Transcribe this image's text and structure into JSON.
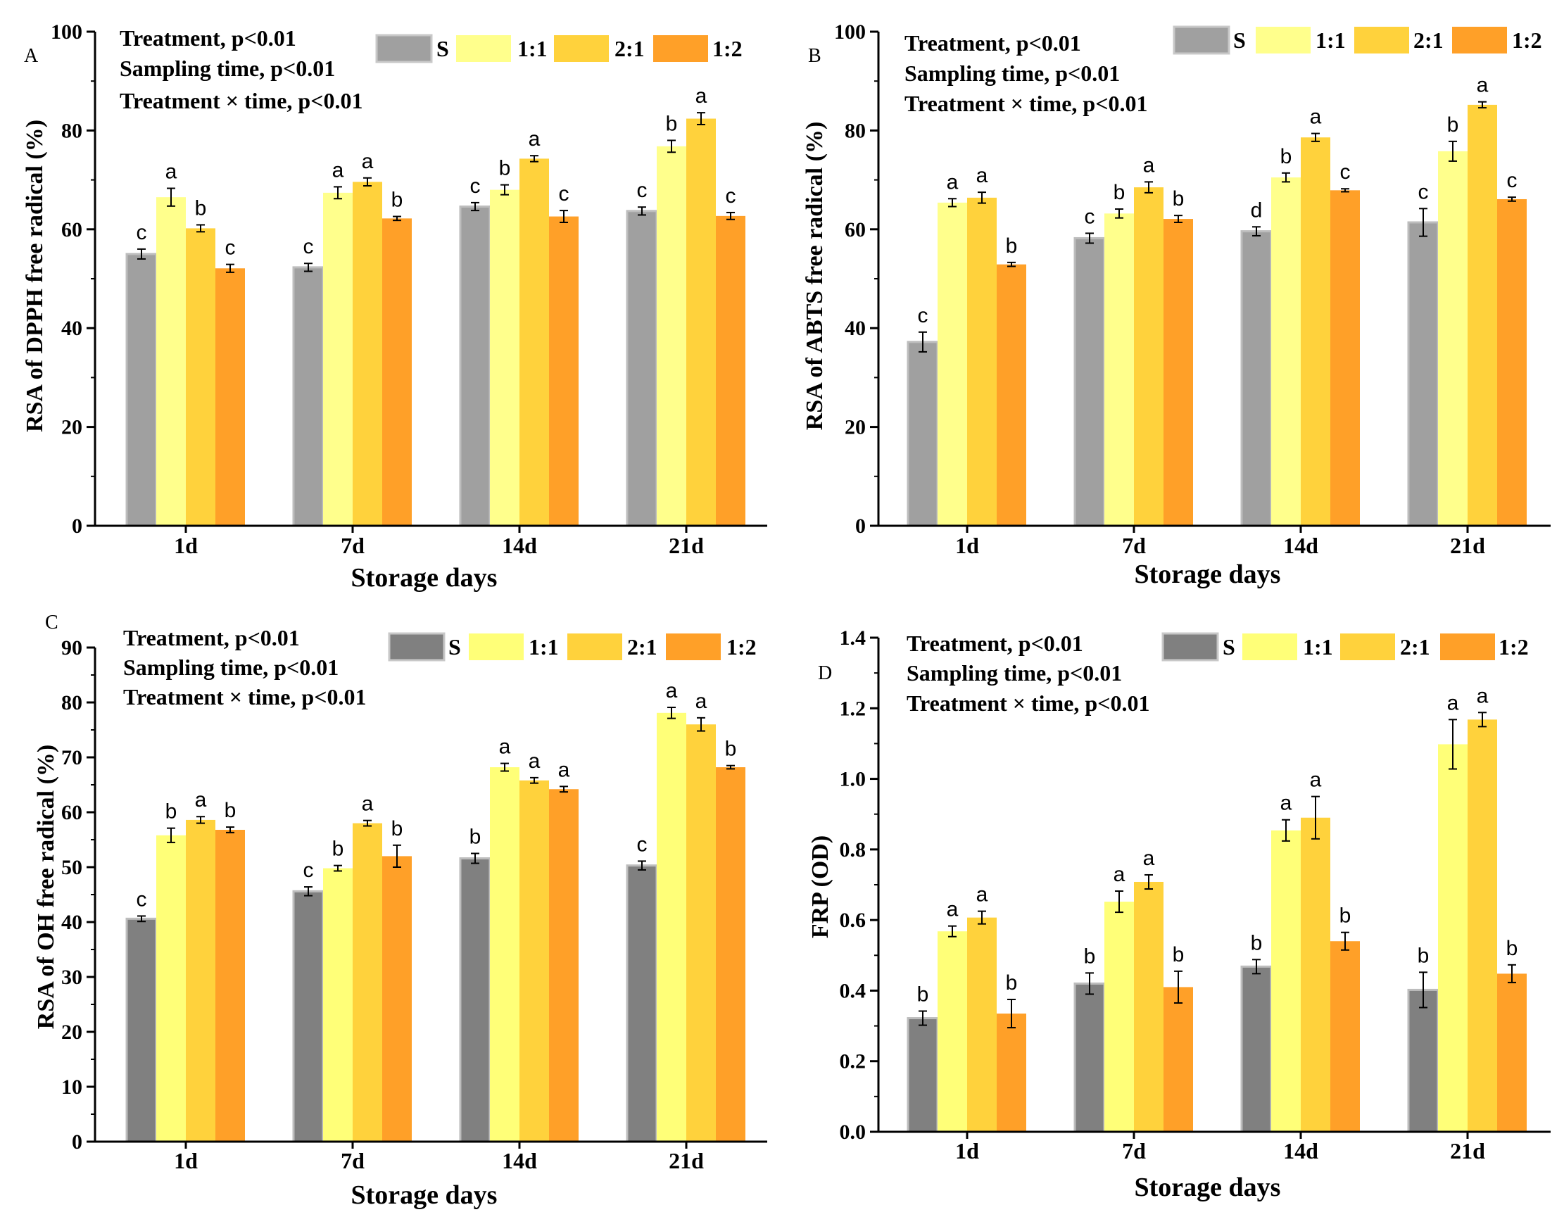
{
  "chart_data": [
    {
      "panel": "A",
      "type": "bar",
      "ylabel": "RSA of DPPH free radical (%)",
      "xlabel": "Storage days",
      "ylim": [
        0,
        100
      ],
      "yticks": [
        "0",
        "20",
        "40",
        "60",
        "80",
        "100"
      ],
      "categories": [
        "1d",
        "7d",
        "14d",
        "21d"
      ],
      "stats": [
        "Treatment, p<0.01",
        "Sampling time, p<0.01",
        "Treatment ×  time, p<0.01"
      ],
      "series": [
        {
          "name": "S",
          "color": "#a0a0a0",
          "values": [
            55.0,
            52.3,
            64.6,
            63.7
          ],
          "errors": [
            1.0,
            0.8,
            0.8,
            0.8
          ],
          "letters": [
            "c",
            "c",
            "c",
            "c"
          ]
        },
        {
          "name": "1:1",
          "color": "#ffff8c",
          "values": [
            66.5,
            67.4,
            68.0,
            76.8
          ],
          "errors": [
            1.8,
            1.2,
            1.0,
            1.2
          ],
          "letters": [
            "a",
            "a",
            "b",
            "b"
          ]
        },
        {
          "name": "2:1",
          "color": "#ffd23c",
          "values": [
            60.2,
            69.6,
            74.3,
            82.4
          ],
          "errors": [
            0.7,
            0.8,
            0.6,
            1.2
          ],
          "letters": [
            "b",
            "a",
            "a",
            "a"
          ]
        },
        {
          "name": "1:2",
          "color": "#ffa028",
          "values": [
            52.1,
            62.2,
            62.6,
            62.7
          ],
          "errors": [
            0.8,
            0.4,
            1.2,
            0.7
          ],
          "letters": [
            "c",
            "b",
            "c",
            "c"
          ]
        }
      ]
    },
    {
      "panel": "B",
      "type": "bar",
      "ylabel": "RSA of ABTS free radical (%)",
      "xlabel": "Storage days",
      "ylim": [
        0,
        100
      ],
      "yticks": [
        "0",
        "20",
        "40",
        "60",
        "80",
        "100"
      ],
      "categories": [
        "1d",
        "7d",
        "14d",
        "21d"
      ],
      "stats": [
        "Treatment, p<0.01",
        "Sampling time, p<0.01",
        "Treatment × time, p<0.01"
      ],
      "series": [
        {
          "name": "S",
          "color": "#a0a0a0",
          "values": [
            37.2,
            58.2,
            59.6,
            61.4
          ],
          "errors": [
            2.0,
            1.0,
            0.9,
            2.8
          ],
          "letters": [
            "c",
            "c",
            "d",
            "c"
          ]
        },
        {
          "name": "1:1",
          "color": "#ffff8c",
          "values": [
            65.4,
            63.2,
            70.5,
            75.8
          ],
          "errors": [
            0.8,
            0.9,
            0.9,
            2.0
          ],
          "letters": [
            "a",
            "b",
            "b",
            "b"
          ]
        },
        {
          "name": "2:1",
          "color": "#ffd23c",
          "values": [
            66.4,
            68.5,
            78.6,
            85.2
          ],
          "errors": [
            1.1,
            1.1,
            0.8,
            0.6
          ],
          "letters": [
            "a",
            "a",
            "a",
            "a"
          ]
        },
        {
          "name": "1:2",
          "color": "#ffa028",
          "values": [
            52.9,
            62.1,
            67.9,
            66.1
          ],
          "errors": [
            0.4,
            0.7,
            0.3,
            0.4
          ],
          "letters": [
            "b",
            "b",
            "c",
            "c"
          ]
        }
      ]
    },
    {
      "panel": "C",
      "type": "bar",
      "ylabel": "RSA of  OH free radical (%)",
      "xlabel": "Storage days",
      "ylim": [
        0,
        90
      ],
      "yticks": [
        "0",
        "10",
        "20",
        "30",
        "40",
        "50",
        "60",
        "70",
        "80",
        "90"
      ],
      "categories": [
        "1d",
        "7d",
        "14d",
        "21d"
      ],
      "stats": [
        "Treatment, p<0.01",
        "Sampling time, p<0.01",
        "Treatment × time, p<0.01"
      ],
      "series": [
        {
          "name": "S",
          "color": "#808080",
          "values": [
            40.6,
            45.6,
            51.6,
            50.3
          ],
          "errors": [
            0.5,
            0.8,
            0.9,
            0.8
          ],
          "letters": [
            "c",
            "c",
            "b",
            "c"
          ]
        },
        {
          "name": "1:1",
          "color": "#ffff78",
          "values": [
            55.8,
            49.8,
            68.2,
            78.1
          ],
          "errors": [
            1.3,
            0.5,
            0.7,
            1.0
          ],
          "letters": [
            "b",
            "b",
            "a",
            "a"
          ]
        },
        {
          "name": "2:1",
          "color": "#ffd23c",
          "values": [
            58.6,
            58.0,
            65.8,
            76.0
          ],
          "errors": [
            0.6,
            0.5,
            0.5,
            1.2
          ],
          "letters": [
            "a",
            "a",
            "a",
            "a"
          ]
        },
        {
          "name": "1:2",
          "color": "#ffa028",
          "values": [
            56.8,
            52.0,
            64.2,
            68.2
          ],
          "errors": [
            0.5,
            2.0,
            0.5,
            0.3
          ],
          "letters": [
            "b",
            "b",
            "a",
            "b"
          ]
        }
      ]
    },
    {
      "panel": "D",
      "type": "bar",
      "ylabel": "FRP (OD)",
      "xlabel": "Storage days",
      "ylim": [
        0,
        1.4
      ],
      "yticks": [
        "0.0",
        "0.2",
        "0.4",
        "0.6",
        "0.8",
        "1.0",
        "1.2",
        "1.4"
      ],
      "categories": [
        "1d",
        "7d",
        "14d",
        "21d"
      ],
      "stats": [
        "Treatment, p<0.01",
        "Sampling time, p<0.01",
        "Treatment × time, p<0.01"
      ],
      "series": [
        {
          "name": "S",
          "color": "#808080",
          "values": [
            0.322,
            0.42,
            0.468,
            0.402
          ],
          "errors": [
            0.02,
            0.03,
            0.02,
            0.05
          ],
          "letters": [
            "b",
            "b",
            "b",
            "b"
          ]
        },
        {
          "name": "1:1",
          "color": "#ffff78",
          "values": [
            0.568,
            0.652,
            0.854,
            1.098
          ],
          "errors": [
            0.015,
            0.03,
            0.03,
            0.07
          ],
          "letters": [
            "a",
            "a",
            "a",
            "a"
          ]
        },
        {
          "name": "2:1",
          "color": "#ffd23c",
          "values": [
            0.607,
            0.708,
            0.89,
            1.168
          ],
          "errors": [
            0.018,
            0.02,
            0.06,
            0.02
          ],
          "letters": [
            "a",
            "a",
            "a",
            "a"
          ]
        },
        {
          "name": "1:2",
          "color": "#ffa028",
          "values": [
            0.335,
            0.41,
            0.54,
            0.448
          ],
          "errors": [
            0.04,
            0.045,
            0.025,
            0.025
          ],
          "letters": [
            "b",
            "b",
            "b",
            "b"
          ]
        }
      ]
    }
  ]
}
